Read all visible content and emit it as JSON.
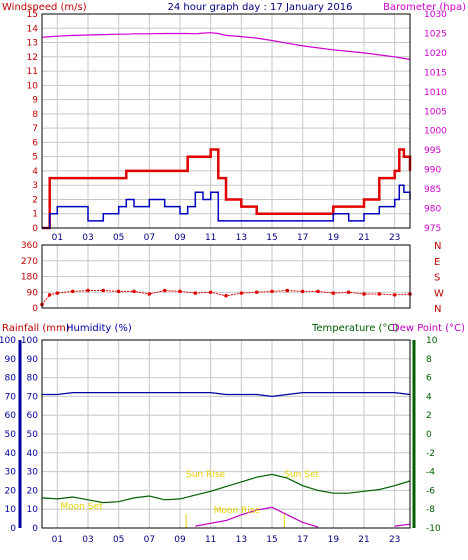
{
  "header": {
    "title": "24 hour graph day : 17 January 2016",
    "left_label": "Windspeed (m/s)",
    "right_label": "Barometer (hpa)"
  },
  "colors": {
    "wind_gust": "#e00000",
    "wind_avg": "#0000c0",
    "barometer": "#d000d0",
    "direction": "#e00000",
    "rain": "#c00000",
    "humidity": "#0000a0",
    "temperature": "#006000",
    "dewpoint": "#c000c0",
    "sun_label": "#e8d000",
    "grid": "#c8c8c8",
    "axis_text_red": "#c00000",
    "axis_text_green": "#006000",
    "axis_text_blue": "#0000a0"
  },
  "chart_data": [
    {
      "type": "line",
      "name": "wind-barometer",
      "title": "24 hour graph day : 17 January 2016",
      "ylabel": "Windspeed (m/s)",
      "y2label": "Barometer (hpa)",
      "x_ticks": [
        "01",
        "03",
        "05",
        "07",
        "09",
        "11",
        "13",
        "15",
        "17",
        "19",
        "21",
        "23"
      ],
      "y_ticks": [
        0,
        1,
        2,
        3,
        4,
        5,
        6,
        7,
        8,
        9,
        10,
        11,
        12,
        13,
        14,
        15
      ],
      "ylim": [
        0,
        15
      ],
      "y2_ticks": [
        975,
        980,
        985,
        990,
        995,
        1000,
        1005,
        1010,
        1015,
        1020,
        1025,
        1030
      ],
      "y2lim": [
        975,
        1030
      ],
      "x": [
        0,
        0.5,
        1,
        2,
        3,
        4,
        5,
        5.5,
        6,
        7,
        8,
        9,
        9.5,
        10,
        10.5,
        11,
        11.5,
        12,
        13,
        14,
        15,
        16,
        17,
        18,
        19,
        20,
        21,
        22,
        23,
        23.3,
        23.6,
        24
      ],
      "series": [
        {
          "values": [
            0,
            3.5,
            3.5,
            3.5,
            3.5,
            3.5,
            3.5,
            4,
            4,
            4,
            4,
            4,
            5,
            5,
            5,
            5.5,
            3.5,
            2,
            1.5,
            1,
            1,
            1,
            1,
            1,
            1.5,
            1.5,
            2,
            3.5,
            4,
            5.5,
            5,
            4
          ]
        },
        {
          "values": [
            0,
            1,
            1.5,
            1.5,
            0.5,
            1,
            1.5,
            2,
            1.5,
            2,
            1.5,
            1,
            1.5,
            2.5,
            2,
            2.5,
            0.5,
            0.5,
            0.5,
            0.5,
            0.5,
            0.5,
            0.5,
            0.5,
            1,
            0.5,
            1,
            1.5,
            2,
            3,
            2.5,
            2
          ]
        },
        {
          "values": [
            1024,
            1024.2,
            1024.3,
            1024.5,
            1024.6,
            1024.7,
            1024.8,
            1024.8,
            1024.9,
            1024.9,
            1025,
            1025,
            1025,
            1024.9,
            1025.1,
            1025.2,
            1025,
            1024.5,
            1024.2,
            1023.8,
            1023.2,
            1022.5,
            1021.8,
            1021.3,
            1020.8,
            1020.4,
            1020,
            1019.5,
            1019,
            1018.8,
            1018.6,
            1018.3
          ]
        }
      ]
    },
    {
      "type": "scatter",
      "name": "wind-direction",
      "y_ticks": [
        0,
        90,
        180,
        270,
        360
      ],
      "ylim": [
        0,
        360
      ],
      "compass": [
        "N",
        "W",
        "S",
        "E",
        "N"
      ],
      "x": [
        0,
        0.5,
        1,
        2,
        3,
        4,
        5,
        6,
        7,
        8,
        9,
        10,
        11,
        12,
        13,
        14,
        15,
        16,
        17,
        18,
        19,
        20,
        21,
        22,
        23,
        24
      ],
      "values": [
        20,
        75,
        85,
        95,
        100,
        100,
        95,
        95,
        80,
        100,
        95,
        85,
        90,
        70,
        85,
        90,
        95,
        100,
        95,
        95,
        85,
        90,
        80,
        80,
        75,
        80
      ]
    },
    {
      "type": "line",
      "name": "rain-humidity-temperature",
      "ylabel_rain": "Rainfall (mm)",
      "ylabel_humidity": "Humidity (%)",
      "ylabel_temperature": "Temperature (°C)",
      "ylabel_dewpoint": "Dew Point (°C)",
      "x_ticks": [
        "01",
        "03",
        "05",
        "07",
        "09",
        "11",
        "13",
        "15",
        "17",
        "19",
        "21",
        "23"
      ],
      "y_ticks": [
        0,
        10,
        20,
        30,
        40,
        50,
        60,
        70,
        80,
        90,
        100
      ],
      "ylim": [
        0,
        100
      ],
      "y2_ticks": [
        -10,
        -8,
        -6,
        -4,
        -2,
        0,
        2,
        4,
        6,
        8,
        10
      ],
      "y2lim": [
        -10,
        10
      ],
      "x": [
        0,
        1,
        2,
        3,
        4,
        5,
        6,
        7,
        8,
        9,
        10,
        11,
        12,
        13,
        14,
        15,
        16,
        17,
        18,
        19,
        20,
        21,
        22,
        23,
        24
      ],
      "series": [
        {
          "values": [
            71,
            71,
            72,
            72,
            72,
            72,
            72,
            72,
            72,
            72,
            72,
            72,
            71,
            71,
            71,
            70,
            71,
            72,
            72,
            72,
            72,
            72,
            72,
            72,
            71
          ]
        },
        {
          "values": [
            -6.8,
            -6.9,
            -6.7,
            -7.0,
            -7.3,
            -7.2,
            -6.8,
            -6.6,
            -7.0,
            -6.9,
            -6.5,
            -6.1,
            -5.6,
            -5.1,
            -4.6,
            -4.3,
            -4.7,
            -5.5,
            -6.0,
            -6.3,
            -6.3,
            -6.1,
            -5.9,
            -5.5,
            -5.0
          ]
        },
        {
          "values": [
            null,
            null,
            null,
            null,
            null,
            null,
            null,
            null,
            null,
            null,
            -9.8,
            -9.5,
            -9.2,
            -8.6,
            -8.1,
            -7.8,
            -8.6,
            -9.4,
            -9.9,
            null,
            null,
            null,
            null,
            -9.8,
            -9.6
          ]
        }
      ],
      "annotations": [
        {
          "text": "Moon Set",
          "x": 1.2,
          "y": 10
        },
        {
          "text": "Sun Rise",
          "x": 9.4,
          "y": 27
        },
        {
          "text": "Moon Rise",
          "x": 11.2,
          "y": 8
        },
        {
          "text": "Sun Set",
          "x": 15.8,
          "y": 27
        }
      ]
    }
  ]
}
